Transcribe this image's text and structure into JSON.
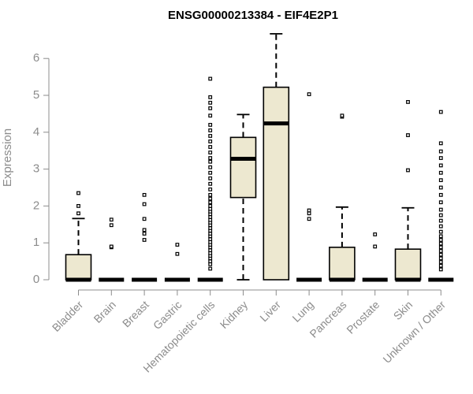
{
  "chart_data": {
    "type": "boxplot",
    "title": "ENSG00000213384 - EIF4E2P1",
    "xlabel": "",
    "ylabel": "Expression",
    "ylim": [
      0,
      6.7
    ],
    "yticks": [
      0,
      1,
      2,
      3,
      4,
      5,
      6
    ],
    "colors": {
      "box_fill": "#ede8d0",
      "stroke": "#000000",
      "axis": "#8c8c8c"
    },
    "categories": [
      "Bladder",
      "Brain",
      "Breast",
      "Gastric",
      "Hematopoietic cells",
      "Kidney",
      "Liver",
      "Lung",
      "Pancreas",
      "Prostate",
      "Skin",
      "Unknown / Other"
    ],
    "boxes": [
      {
        "q1": 0,
        "median": 0,
        "q3": 0.68,
        "whisker_low": 0,
        "whisker_high": 1.66,
        "outliers": [
          1.8,
          2.0,
          2.35
        ]
      },
      {
        "q1": 0,
        "median": 0,
        "q3": 0,
        "whisker_low": 0,
        "whisker_high": 0,
        "outliers": [
          0.88,
          0.9,
          1.48,
          1.63
        ]
      },
      {
        "q1": 0,
        "median": 0,
        "q3": 0,
        "whisker_low": 0,
        "whisker_high": 0,
        "outliers": [
          1.08,
          1.25,
          1.35,
          1.65,
          2.05,
          2.3
        ]
      },
      {
        "q1": 0,
        "median": 0,
        "q3": 0,
        "whisker_low": 0,
        "whisker_high": 0,
        "outliers": [
          0.7,
          0.95
        ]
      },
      {
        "q1": 0,
        "median": 0,
        "q3": 0,
        "whisker_low": 0,
        "whisker_high": 0,
        "outliers": [
          0.3,
          0.42,
          0.5,
          0.58,
          0.65,
          0.72,
          0.8,
          0.88,
          0.95,
          1.02,
          1.1,
          1.18,
          1.25,
          1.33,
          1.4,
          1.48,
          1.55,
          1.62,
          1.7,
          1.78,
          1.85,
          1.92,
          2.0,
          2.1,
          2.2,
          2.3,
          2.45,
          2.6,
          2.75,
          2.9,
          3.05,
          3.2,
          3.3,
          3.45,
          3.6,
          3.75,
          3.9,
          4.05,
          4.2,
          4.45,
          4.65,
          4.8,
          4.95,
          5.45
        ]
      },
      {
        "q1": 2.23,
        "median": 3.28,
        "q3": 3.86,
        "whisker_low": 0,
        "whisker_high": 4.48,
        "outliers": []
      },
      {
        "q1": 0,
        "median": 4.24,
        "q3": 5.22,
        "whisker_low": 0,
        "whisker_high": 6.67,
        "outliers": []
      },
      {
        "q1": 0,
        "median": 0,
        "q3": 0,
        "whisker_low": 0,
        "whisker_high": 0,
        "outliers": [
          1.65,
          1.8,
          1.88,
          5.03
        ]
      },
      {
        "q1": 0,
        "median": 0,
        "q3": 0.88,
        "whisker_low": 0,
        "whisker_high": 1.97,
        "outliers": [
          4.42,
          4.45
        ]
      },
      {
        "q1": 0,
        "median": 0,
        "q3": 0,
        "whisker_low": 0,
        "whisker_high": 0,
        "outliers": [
          0.9,
          1.23
        ]
      },
      {
        "q1": 0,
        "median": 0,
        "q3": 0.83,
        "whisker_low": 0,
        "whisker_high": 1.95,
        "outliers": [
          2.97,
          3.92,
          4.82
        ]
      },
      {
        "q1": 0,
        "median": 0,
        "q3": 0,
        "whisker_low": 0,
        "whisker_high": 0,
        "outliers": [
          0.28,
          0.38,
          0.48,
          0.58,
          0.68,
          0.78,
          0.88,
          0.98,
          1.08,
          1.18,
          1.3,
          1.45,
          1.6,
          1.75,
          1.9,
          2.1,
          2.3,
          2.5,
          2.7,
          2.9,
          3.1,
          3.3,
          3.48,
          3.7,
          4.55
        ]
      }
    ]
  }
}
